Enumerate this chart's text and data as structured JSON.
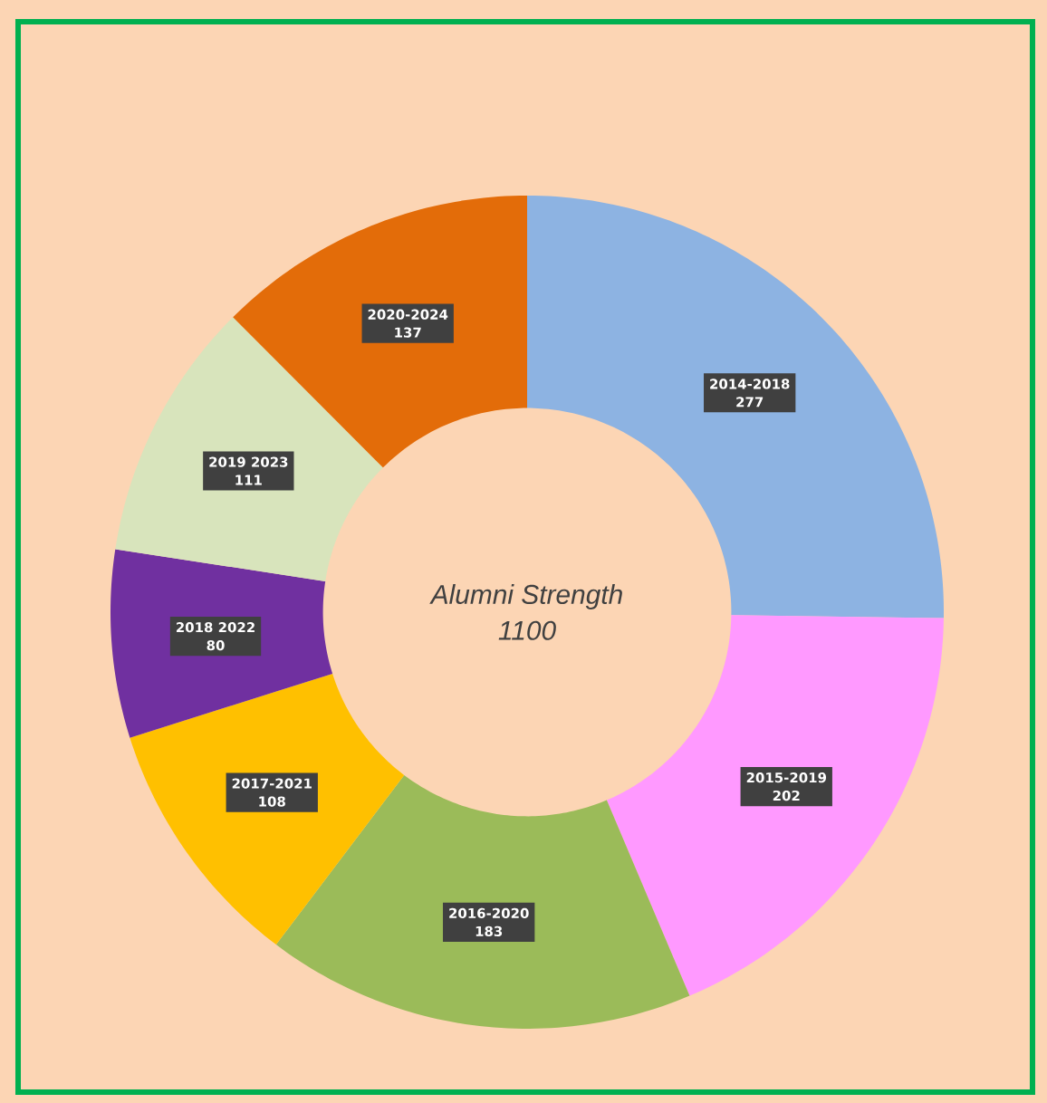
{
  "chart_data": {
    "type": "donut",
    "categories": [
      "2014-2018",
      "2015-2019",
      "2016-2020",
      "2017-2021",
      "2018 2022",
      "2019 2023",
      "2020-2024"
    ],
    "values": [
      277,
      202,
      183,
      108,
      80,
      111,
      137
    ],
    "colors": [
      "#8db3e2",
      "#ff99ff",
      "#9bbb59",
      "#ffc000",
      "#7030a0",
      "#d8e4bc",
      "#e36c09"
    ],
    "data_labels": true,
    "annotations": [
      "Alumni Strength",
      "1100"
    ]
  }
}
